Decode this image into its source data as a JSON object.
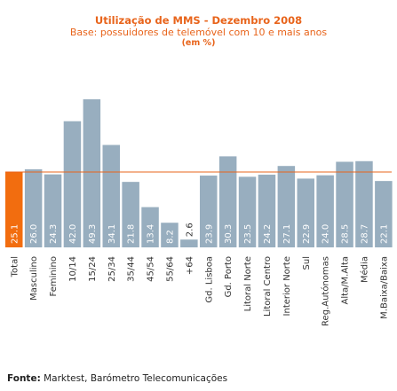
{
  "chart_data": {
    "type": "bar",
    "title": "Utilização de MMS - Dezembro 2008",
    "subtitle": "Base: possuidores de telemóvel com 10 e mais anos",
    "units": "(em %)",
    "categories": [
      "Total",
      "Masculino",
      "Feminino",
      "10/14",
      "15/24",
      "25/34",
      "35/44",
      "45/54",
      "55/64",
      "+64",
      "Gd. Lisboa",
      "Gd. Porto",
      "Litoral Norte",
      "Litoral Centro",
      "Interior Norte",
      "Sul",
      "Reg.Autónomas",
      "Alta/M.Alta",
      "Média",
      "M.Baixa/Baixa"
    ],
    "values": [
      25.1,
      26.0,
      24.3,
      42.0,
      49.3,
      34.1,
      21.8,
      13.4,
      8.2,
      2.6,
      23.9,
      30.3,
      23.5,
      24.2,
      27.1,
      22.9,
      24.0,
      28.5,
      28.7,
      22.1
    ],
    "value_labels": [
      "25.1",
      "26.0",
      "24.3",
      "42.0",
      "49.3",
      "34.1",
      "21.8",
      "13.4",
      "8.2",
      "2.6",
      "23.9",
      "30.3",
      "23.5",
      "24.2",
      "27.1",
      "22.9",
      "24.0",
      "28.5",
      "28.7",
      "22.1"
    ],
    "highlight_index": 0,
    "reference_line": 25.1,
    "ylim": [
      0,
      49.3
    ],
    "colors": {
      "highlight": "#f26d0f",
      "bar": "#98aebf",
      "reference_line": "#e8641b",
      "value_text": "#ffffff",
      "value_text_outside": "#333333"
    }
  },
  "source": {
    "label": "Fonte:",
    "text": " Marktest, Barómetro Telecomunicações"
  }
}
